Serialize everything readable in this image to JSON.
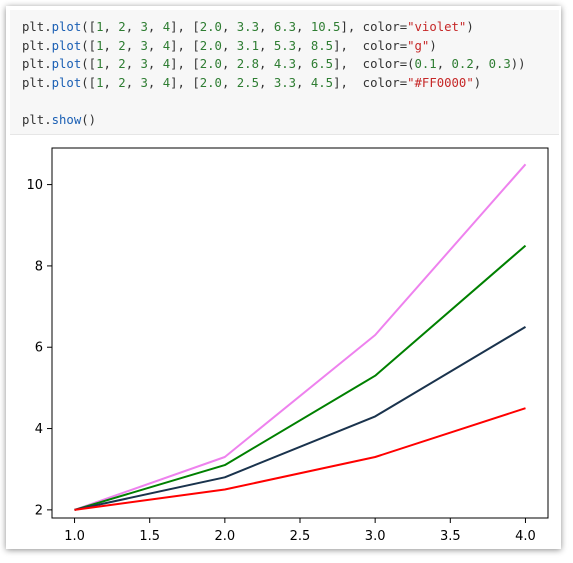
{
  "code_cell": {
    "lines": [
      [
        {
          "t": "plt.",
          "c": "plt"
        },
        {
          "t": "plot",
          "c": "fn"
        },
        {
          "t": "([",
          "c": "plt"
        },
        {
          "t": "1",
          "c": "num"
        },
        {
          "t": ", ",
          "c": "plt"
        },
        {
          "t": "2",
          "c": "num"
        },
        {
          "t": ", ",
          "c": "plt"
        },
        {
          "t": "3",
          "c": "num"
        },
        {
          "t": ", ",
          "c": "plt"
        },
        {
          "t": "4",
          "c": "num"
        },
        {
          "t": "], [",
          "c": "plt"
        },
        {
          "t": "2.0",
          "c": "num"
        },
        {
          "t": ", ",
          "c": "plt"
        },
        {
          "t": "3.3",
          "c": "num"
        },
        {
          "t": ", ",
          "c": "plt"
        },
        {
          "t": "6.3",
          "c": "num"
        },
        {
          "t": ", ",
          "c": "plt"
        },
        {
          "t": "10.5",
          "c": "num"
        },
        {
          "t": "], color=",
          "c": "plt"
        },
        {
          "t": "\"violet\"",
          "c": "str"
        },
        {
          "t": ")",
          "c": "plt"
        }
      ],
      [
        {
          "t": "plt.",
          "c": "plt"
        },
        {
          "t": "plot",
          "c": "fn"
        },
        {
          "t": "([",
          "c": "plt"
        },
        {
          "t": "1",
          "c": "num"
        },
        {
          "t": ", ",
          "c": "plt"
        },
        {
          "t": "2",
          "c": "num"
        },
        {
          "t": ", ",
          "c": "plt"
        },
        {
          "t": "3",
          "c": "num"
        },
        {
          "t": ", ",
          "c": "plt"
        },
        {
          "t": "4",
          "c": "num"
        },
        {
          "t": "], [",
          "c": "plt"
        },
        {
          "t": "2.0",
          "c": "num"
        },
        {
          "t": ", ",
          "c": "plt"
        },
        {
          "t": "3.1",
          "c": "num"
        },
        {
          "t": ", ",
          "c": "plt"
        },
        {
          "t": "5.3",
          "c": "num"
        },
        {
          "t": ", ",
          "c": "plt"
        },
        {
          "t": "8.5",
          "c": "num"
        },
        {
          "t": "],  color=",
          "c": "plt"
        },
        {
          "t": "\"g\"",
          "c": "str"
        },
        {
          "t": ")",
          "c": "plt"
        }
      ],
      [
        {
          "t": "plt.",
          "c": "plt"
        },
        {
          "t": "plot",
          "c": "fn"
        },
        {
          "t": "([",
          "c": "plt"
        },
        {
          "t": "1",
          "c": "num"
        },
        {
          "t": ", ",
          "c": "plt"
        },
        {
          "t": "2",
          "c": "num"
        },
        {
          "t": ", ",
          "c": "plt"
        },
        {
          "t": "3",
          "c": "num"
        },
        {
          "t": ", ",
          "c": "plt"
        },
        {
          "t": "4",
          "c": "num"
        },
        {
          "t": "], [",
          "c": "plt"
        },
        {
          "t": "2.0",
          "c": "num"
        },
        {
          "t": ", ",
          "c": "plt"
        },
        {
          "t": "2.8",
          "c": "num"
        },
        {
          "t": ", ",
          "c": "plt"
        },
        {
          "t": "4.3",
          "c": "num"
        },
        {
          "t": ", ",
          "c": "plt"
        },
        {
          "t": "6.5",
          "c": "num"
        },
        {
          "t": "],  color=(",
          "c": "plt"
        },
        {
          "t": "0.1",
          "c": "num"
        },
        {
          "t": ", ",
          "c": "plt"
        },
        {
          "t": "0.2",
          "c": "num"
        },
        {
          "t": ", ",
          "c": "plt"
        },
        {
          "t": "0.3",
          "c": "num"
        },
        {
          "t": "))",
          "c": "plt"
        }
      ],
      [
        {
          "t": "plt.",
          "c": "plt"
        },
        {
          "t": "plot",
          "c": "fn"
        },
        {
          "t": "([",
          "c": "plt"
        },
        {
          "t": "1",
          "c": "num"
        },
        {
          "t": ", ",
          "c": "plt"
        },
        {
          "t": "2",
          "c": "num"
        },
        {
          "t": ", ",
          "c": "plt"
        },
        {
          "t": "3",
          "c": "num"
        },
        {
          "t": ", ",
          "c": "plt"
        },
        {
          "t": "4",
          "c": "num"
        },
        {
          "t": "], [",
          "c": "plt"
        },
        {
          "t": "2.0",
          "c": "num"
        },
        {
          "t": ", ",
          "c": "plt"
        },
        {
          "t": "2.5",
          "c": "num"
        },
        {
          "t": ", ",
          "c": "plt"
        },
        {
          "t": "3.3",
          "c": "num"
        },
        {
          "t": ", ",
          "c": "plt"
        },
        {
          "t": "4.5",
          "c": "num"
        },
        {
          "t": "],  color=",
          "c": "plt"
        },
        {
          "t": "\"#FF0000\"",
          "c": "str"
        },
        {
          "t": ")",
          "c": "plt"
        }
      ],
      [],
      [
        {
          "t": "plt.",
          "c": "plt"
        },
        {
          "t": "show",
          "c": "fn"
        },
        {
          "t": "()",
          "c": "plt"
        }
      ]
    ]
  },
  "chart_data": {
    "type": "line",
    "title": "",
    "xlabel": "",
    "ylabel": "",
    "xlim": [
      0.85,
      4.15
    ],
    "ylim": [
      1.8,
      10.9
    ],
    "xticks": [
      1.0,
      1.5,
      2.0,
      2.5,
      3.0,
      3.5,
      4.0
    ],
    "xtick_labels": [
      "1.0",
      "1.5",
      "2.0",
      "2.5",
      "3.0",
      "3.5",
      "4.0"
    ],
    "yticks": [
      2,
      4,
      6,
      8,
      10
    ],
    "ytick_labels": [
      "2",
      "4",
      "6",
      "8",
      "10"
    ],
    "grid": false,
    "x": [
      1,
      2,
      3,
      4
    ],
    "series": [
      {
        "values": [
          2.0,
          3.3,
          6.3,
          10.5
        ],
        "color": "#ee82ee"
      },
      {
        "values": [
          2.0,
          3.1,
          5.3,
          8.5
        ],
        "color": "#008000"
      },
      {
        "values": [
          2.0,
          2.8,
          4.3,
          6.5
        ],
        "color": "#1a334d"
      },
      {
        "values": [
          2.0,
          2.5,
          3.3,
          4.5
        ],
        "color": "#ff0000"
      }
    ]
  }
}
